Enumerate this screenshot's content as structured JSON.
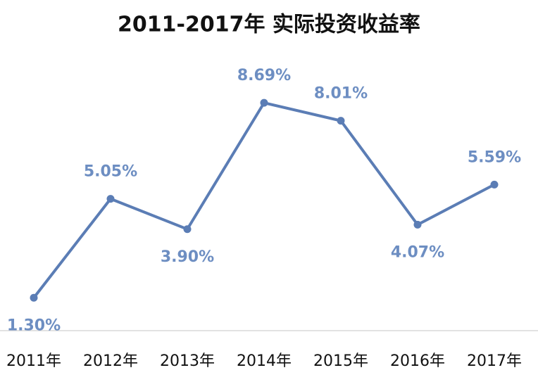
{
  "chart_data": {
    "type": "line",
    "title": "2011-2017年 实际投资收益率",
    "categories": [
      "2011年",
      "2012年",
      "2013年",
      "2014年",
      "2015年",
      "2016年",
      "2017年"
    ],
    "values": [
      1.3,
      5.05,
      3.9,
      8.69,
      8.01,
      4.07,
      5.59
    ],
    "value_labels": [
      "1.30%",
      "5.05%",
      "3.90%",
      "8.69%",
      "8.01%",
      "4.07%",
      "5.59%"
    ],
    "color": "#5b7db5"
  }
}
